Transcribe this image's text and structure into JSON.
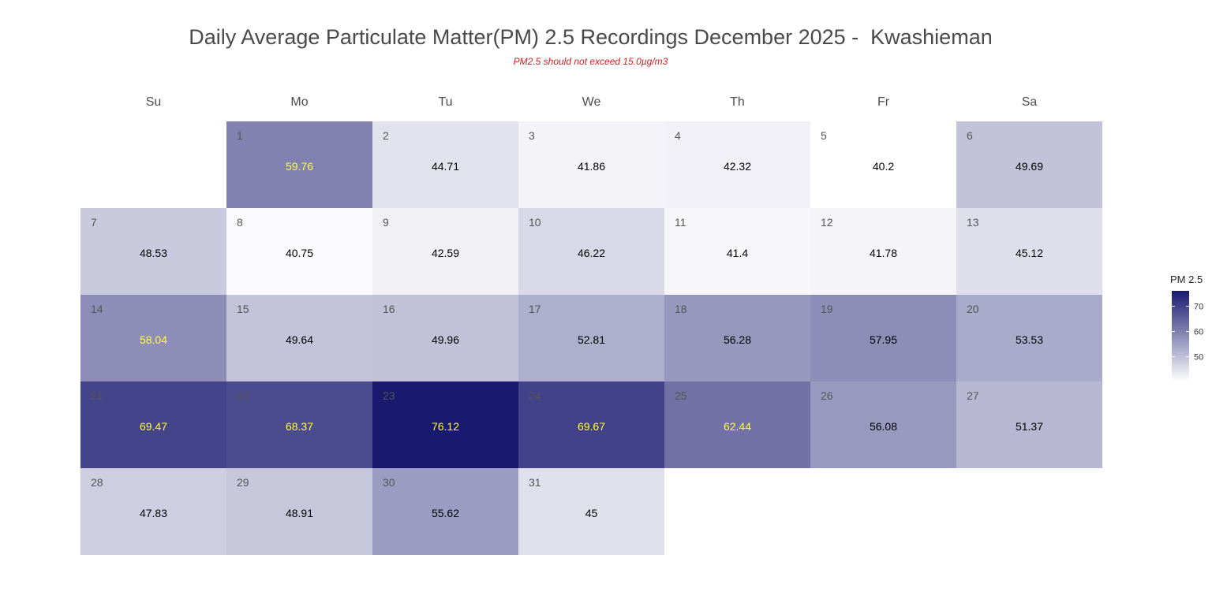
{
  "title": "Daily Average Particulate Matter(PM) 2.5 Recordings December 2025 -  Kwashieman",
  "subtitle": "PM2.5 should not exceed 15.0µg/m3",
  "chart_data": {
    "type": "heatmap",
    "layout": "calendar",
    "weekdays": [
      "Su",
      "Mo",
      "Tu",
      "We",
      "Th",
      "Fr",
      "Sa"
    ],
    "first_weekday_index": 1,
    "days": [
      1,
      2,
      3,
      4,
      5,
      6,
      7,
      8,
      9,
      10,
      11,
      12,
      13,
      14,
      15,
      16,
      17,
      18,
      19,
      20,
      21,
      22,
      23,
      24,
      25,
      26,
      27,
      28,
      29,
      30,
      31
    ],
    "values": [
      59.76,
      44.71,
      41.86,
      42.32,
      40.2,
      49.69,
      48.53,
      40.75,
      42.59,
      46.22,
      41.4,
      41.78,
      45.12,
      58.04,
      49.64,
      49.96,
      52.81,
      56.28,
      57.95,
      53.53,
      69.47,
      68.37,
      76.12,
      69.67,
      62.44,
      56.08,
      51.37,
      47.83,
      48.91,
      55.62,
      45
    ],
    "value_labels": [
      "59.76",
      "44.71",
      "41.86",
      "42.32",
      "40.2",
      "49.69",
      "48.53",
      "40.75",
      "42.59",
      "46.22",
      "41.4",
      "41.78",
      "45.12",
      "58.04",
      "49.64",
      "49.96",
      "52.81",
      "56.28",
      "57.95",
      "53.53",
      "69.47",
      "68.37",
      "76.12",
      "69.67",
      "62.44",
      "56.08",
      "51.37",
      "47.83",
      "48.91",
      "55.62",
      "45"
    ],
    "highlight_threshold": 58,
    "color_low": "#ffffff",
    "color_high": "#191970",
    "highlight_text_color": "#ffff33",
    "legend": {
      "title": "PM 2.5",
      "ticks": [
        50,
        60,
        70
      ],
      "range": [
        40.2,
        76.12
      ],
      "position": "right"
    }
  }
}
